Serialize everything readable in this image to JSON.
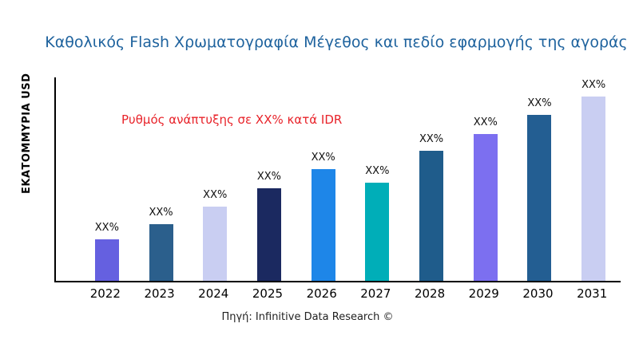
{
  "annotation": "Ρυθμός ανάπτυξης σε XX% κατά IDR",
  "source": "Πηγή: Infinitive Data Research ©",
  "chart_data": {
    "type": "bar",
    "title": "Καθολικός Flash Χρωματογραφία Μέγεθος και πεδίο εφαρμογής της αγοράς",
    "ylabel": "ΕΚΑΤΟΜΜΥΡΙΑ USD",
    "xlabel": "",
    "categories": [
      "2022",
      "2023",
      "2024",
      "2025",
      "2026",
      "2027",
      "2028",
      "2029",
      "2030",
      "2031"
    ],
    "values": [
      52,
      71,
      93,
      116,
      140,
      123,
      163,
      184,
      208,
      231
    ],
    "value_labels": [
      "XX%",
      "XX%",
      "XX%",
      "XX%",
      "XX%",
      "XX%",
      "XX%",
      "XX%",
      "XX%",
      "XX%"
    ],
    "bar_colors": [
      "#6560E0",
      "#2B5F8C",
      "#C9CEF2",
      "#1B2960",
      "#1E86E8",
      "#00AEB8",
      "#1F5C8B",
      "#7C6FF0",
      "#235E92",
      "#C9CEF2"
    ],
    "ylim": [
      0,
      255
    ],
    "grid": false,
    "legend": false,
    "annotation": "Ρυθμός ανάπτυξης σε XX% κατά IDR",
    "title_color": "#1F639E",
    "annotation_color": "#E8232A",
    "axis_color": "#000000"
  }
}
